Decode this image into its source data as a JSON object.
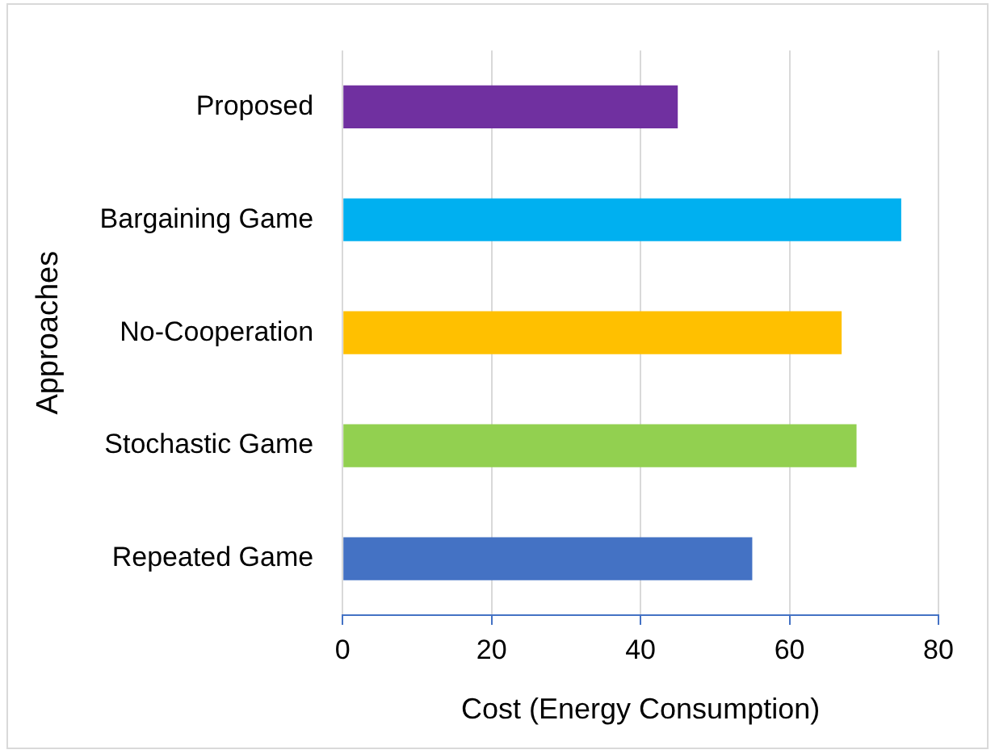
{
  "chart_data": {
    "type": "bar",
    "orientation": "horizontal",
    "xlabel": "Cost (Energy Consumption)",
    "ylabel": "Approaches",
    "categories": [
      "Proposed",
      "Bargaining Game",
      "No-Cooperation",
      "Stochastic Game",
      "Repeated Game"
    ],
    "values": [
      45,
      75,
      67,
      69,
      55
    ],
    "colors": [
      "#7030a0",
      "#00b0f0",
      "#ffc000",
      "#92d050",
      "#4472c4"
    ],
    "xlim": [
      0,
      80
    ],
    "xticks": [
      0,
      20,
      40,
      60,
      80
    ],
    "grid": "x",
    "legend": false
  }
}
